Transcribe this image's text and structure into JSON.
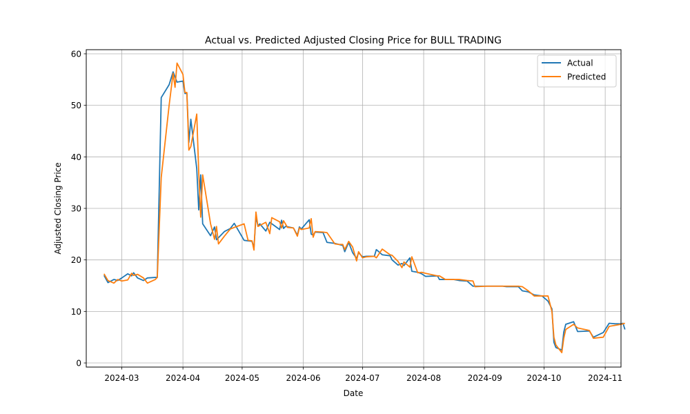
{
  "chart_data": {
    "type": "line",
    "title": "Actual vs. Predicted Adjusted Closing Price for BULL TRADING",
    "xlabel": "Date",
    "ylabel": "Adjusted Closing Price",
    "x_ticks": [
      "2024-03",
      "2024-04",
      "2024-05",
      "2024-06",
      "2024-07",
      "2024-08",
      "2024-09",
      "2024-10",
      "2024-11"
    ],
    "y_ticks": [
      "0",
      "10",
      "20",
      "30",
      "40",
      "50",
      "60"
    ],
    "xlim": [
      "2024-02-12",
      "2024-11-09"
    ],
    "ylim": [
      -0.8,
      60.8
    ],
    "grid": true,
    "legend": {
      "position": "top-right"
    },
    "series": [
      {
        "name": "Actual",
        "color": "#1f77b4",
        "points": [
          [
            "2024-02-21",
            17.0
          ],
          [
            "2024-02-23",
            15.6
          ],
          [
            "2024-02-26",
            16.2
          ],
          [
            "2024-02-28",
            16.0
          ],
          [
            "2024-03-01",
            16.5
          ],
          [
            "2024-03-04",
            17.3
          ],
          [
            "2024-03-06",
            16.9
          ],
          [
            "2024-03-07",
            17.5
          ],
          [
            "2024-03-09",
            16.5
          ],
          [
            "2024-03-12",
            16.0
          ],
          [
            "2024-03-14",
            16.5
          ],
          [
            "2024-03-18",
            16.6
          ],
          [
            "2024-03-19",
            16.6
          ],
          [
            "2024-03-21",
            51.5
          ],
          [
            "2024-03-25",
            54.0
          ],
          [
            "2024-03-27",
            56.5
          ],
          [
            "2024-03-29",
            54.5
          ],
          [
            "2024-04-01",
            54.7
          ],
          [
            "2024-04-02",
            52.3
          ],
          [
            "2024-04-03",
            52.3
          ],
          [
            "2024-04-04",
            42.8
          ],
          [
            "2024-04-05",
            47.3
          ],
          [
            "2024-04-08",
            37.7
          ],
          [
            "2024-04-09",
            29.7
          ],
          [
            "2024-04-10",
            36.5
          ],
          [
            "2024-04-11",
            27.0
          ],
          [
            "2024-04-15",
            24.7
          ],
          [
            "2024-04-17",
            26.4
          ],
          [
            "2024-04-18",
            23.9
          ],
          [
            "2024-04-22",
            25.5
          ],
          [
            "2024-04-25",
            26.1
          ],
          [
            "2024-04-27",
            27.1
          ],
          [
            "2024-05-02",
            23.8
          ],
          [
            "2024-05-06",
            23.6
          ],
          [
            "2024-05-07",
            22.4
          ],
          [
            "2024-05-08",
            28.4
          ],
          [
            "2024-05-09",
            26.6
          ],
          [
            "2024-05-10",
            27.0
          ],
          [
            "2024-05-13",
            25.6
          ],
          [
            "2024-05-15",
            27.3
          ],
          [
            "2024-05-20",
            25.9
          ],
          [
            "2024-05-21",
            27.7
          ],
          [
            "2024-05-22",
            26.1
          ],
          [
            "2024-05-23",
            26.5
          ],
          [
            "2024-05-27",
            26.2
          ],
          [
            "2024-05-29",
            24.8
          ],
          [
            "2024-05-30",
            26.4
          ],
          [
            "2024-05-31",
            26.0
          ],
          [
            "2024-06-04",
            27.8
          ],
          [
            "2024-06-05",
            25.0
          ],
          [
            "2024-06-06",
            24.8
          ],
          [
            "2024-06-07",
            25.4
          ],
          [
            "2024-06-11",
            25.3
          ],
          [
            "2024-06-13",
            23.4
          ],
          [
            "2024-06-17",
            23.2
          ],
          [
            "2024-06-19",
            23.0
          ],
          [
            "2024-06-21",
            22.8
          ],
          [
            "2024-06-22",
            21.6
          ],
          [
            "2024-06-24",
            23.4
          ],
          [
            "2024-06-26",
            21.4
          ],
          [
            "2024-06-28",
            20.3
          ],
          [
            "2024-06-29",
            21.4
          ],
          [
            "2024-07-01",
            20.6
          ],
          [
            "2024-07-03",
            20.7
          ],
          [
            "2024-07-07",
            20.7
          ],
          [
            "2024-07-08",
            22.0
          ],
          [
            "2024-07-11",
            21.0
          ],
          [
            "2024-07-15",
            20.8
          ],
          [
            "2024-07-16",
            20.0
          ],
          [
            "2024-07-19",
            19.0
          ],
          [
            "2024-07-21",
            19.3
          ],
          [
            "2024-07-22",
            18.9
          ],
          [
            "2024-07-25",
            20.4
          ],
          [
            "2024-07-26",
            17.8
          ],
          [
            "2024-07-29",
            17.6
          ],
          [
            "2024-07-31",
            17.3
          ],
          [
            "2024-08-02",
            16.8
          ],
          [
            "2024-08-08",
            16.9
          ],
          [
            "2024-08-09",
            16.2
          ],
          [
            "2024-08-12",
            16.2
          ],
          [
            "2024-08-16",
            16.2
          ],
          [
            "2024-08-19",
            16.0
          ],
          [
            "2024-08-23",
            15.9
          ],
          [
            "2024-08-26",
            14.9
          ],
          [
            "2024-09-02",
            14.9
          ],
          [
            "2024-09-10",
            14.9
          ],
          [
            "2024-09-12",
            14.8
          ],
          [
            "2024-09-18",
            14.8
          ],
          [
            "2024-09-20",
            14.0
          ],
          [
            "2024-09-23",
            13.8
          ],
          [
            "2024-09-26",
            13.2
          ],
          [
            "2024-09-30",
            13.0
          ],
          [
            "2024-10-03",
            12.0
          ],
          [
            "2024-10-05",
            10.5
          ],
          [
            "2024-10-06",
            4.0
          ],
          [
            "2024-10-07",
            3.0
          ],
          [
            "2024-10-10",
            2.5
          ],
          [
            "2024-10-11",
            6.0
          ],
          [
            "2024-10-12",
            7.5
          ],
          [
            "2024-10-16",
            8.0
          ],
          [
            "2024-10-18",
            6.1
          ],
          [
            "2024-10-24",
            6.2
          ],
          [
            "2024-10-26",
            5.0
          ],
          [
            "2024-10-31",
            5.9
          ],
          [
            "2024-11-03",
            7.7
          ],
          [
            "2024-11-06",
            7.6
          ],
          [
            "2024-11-09",
            7.6
          ],
          [
            "2024-11-10",
            7.7
          ],
          [
            "2024-11-11",
            6.5
          ]
        ]
      },
      {
        "name": "Predicted",
        "color": "#ff7f0e",
        "points": [
          [
            "2024-02-21",
            17.3
          ],
          [
            "2024-02-23",
            16.0
          ],
          [
            "2024-02-26",
            15.5
          ],
          [
            "2024-02-28",
            16.2
          ],
          [
            "2024-03-01",
            15.9
          ],
          [
            "2024-03-04",
            16.1
          ],
          [
            "2024-03-06",
            17.4
          ],
          [
            "2024-03-07",
            17.0
          ],
          [
            "2024-03-09",
            17.2
          ],
          [
            "2024-03-12",
            16.5
          ],
          [
            "2024-03-14",
            15.5
          ],
          [
            "2024-03-18",
            16.2
          ],
          [
            "2024-03-19",
            16.6
          ],
          [
            "2024-03-21",
            36.0
          ],
          [
            "2024-03-25",
            50.0
          ],
          [
            "2024-03-27",
            56.2
          ],
          [
            "2024-03-28",
            53.5
          ],
          [
            "2024-03-29",
            58.2
          ],
          [
            "2024-04-01",
            56.0
          ],
          [
            "2024-04-02",
            52.5
          ],
          [
            "2024-04-03",
            52.5
          ],
          [
            "2024-04-04",
            41.3
          ],
          [
            "2024-04-05",
            42.0
          ],
          [
            "2024-04-08",
            48.3
          ],
          [
            "2024-04-09",
            37.0
          ],
          [
            "2024-04-10",
            28.3
          ],
          [
            "2024-04-11",
            36.5
          ],
          [
            "2024-04-15",
            27.0
          ],
          [
            "2024-04-17",
            24.0
          ],
          [
            "2024-04-18",
            26.5
          ],
          [
            "2024-04-19",
            23.1
          ],
          [
            "2024-04-22",
            24.6
          ],
          [
            "2024-04-25",
            26.0
          ],
          [
            "2024-04-27",
            26.3
          ],
          [
            "2024-05-02",
            27.0
          ],
          [
            "2024-05-04",
            23.8
          ],
          [
            "2024-05-06",
            23.7
          ],
          [
            "2024-05-07",
            21.9
          ],
          [
            "2024-05-08",
            29.3
          ],
          [
            "2024-05-09",
            26.5
          ],
          [
            "2024-05-13",
            27.3
          ],
          [
            "2024-05-15",
            25.1
          ],
          [
            "2024-05-16",
            28.2
          ],
          [
            "2024-05-20",
            27.4
          ],
          [
            "2024-05-21",
            26.2
          ],
          [
            "2024-05-22",
            27.6
          ],
          [
            "2024-05-24",
            26.3
          ],
          [
            "2024-05-27",
            26.2
          ],
          [
            "2024-05-29",
            24.6
          ],
          [
            "2024-05-30",
            26.2
          ],
          [
            "2024-05-31",
            25.9
          ],
          [
            "2024-06-04",
            26.2
          ],
          [
            "2024-06-05",
            28.0
          ],
          [
            "2024-06-06",
            24.4
          ],
          [
            "2024-06-07",
            25.5
          ],
          [
            "2024-06-11",
            25.4
          ],
          [
            "2024-06-13",
            25.3
          ],
          [
            "2024-06-17",
            23.1
          ],
          [
            "2024-06-19",
            23.0
          ],
          [
            "2024-06-21",
            23.0
          ],
          [
            "2024-06-22",
            22.0
          ],
          [
            "2024-06-24",
            23.6
          ],
          [
            "2024-06-26",
            22.5
          ],
          [
            "2024-06-28",
            19.8
          ],
          [
            "2024-06-29",
            21.6
          ],
          [
            "2024-07-01",
            20.4
          ],
          [
            "2024-07-03",
            20.6
          ],
          [
            "2024-07-07",
            20.7
          ],
          [
            "2024-07-08",
            20.4
          ],
          [
            "2024-07-11",
            22.1
          ],
          [
            "2024-07-15",
            21.0
          ],
          [
            "2024-07-16",
            20.9
          ],
          [
            "2024-07-19",
            19.7
          ],
          [
            "2024-07-21",
            18.5
          ],
          [
            "2024-07-22",
            19.6
          ],
          [
            "2024-07-25",
            18.6
          ],
          [
            "2024-07-26",
            20.6
          ],
          [
            "2024-07-29",
            17.5
          ],
          [
            "2024-07-31",
            17.6
          ],
          [
            "2024-08-02",
            17.4
          ],
          [
            "2024-08-08",
            16.9
          ],
          [
            "2024-08-09",
            16.9
          ],
          [
            "2024-08-12",
            16.2
          ],
          [
            "2024-08-16",
            16.2
          ],
          [
            "2024-08-19",
            16.2
          ],
          [
            "2024-08-23",
            16.0
          ],
          [
            "2024-08-26",
            15.9
          ],
          [
            "2024-08-27",
            14.8
          ],
          [
            "2024-09-02",
            14.9
          ],
          [
            "2024-09-10",
            14.9
          ],
          [
            "2024-09-12",
            14.9
          ],
          [
            "2024-09-18",
            14.9
          ],
          [
            "2024-09-20",
            14.8
          ],
          [
            "2024-09-23",
            14.0
          ],
          [
            "2024-09-26",
            13.0
          ],
          [
            "2024-09-30",
            13.0
          ],
          [
            "2024-10-03",
            13.0
          ],
          [
            "2024-10-05",
            10.0
          ],
          [
            "2024-10-06",
            5.0
          ],
          [
            "2024-10-07",
            3.5
          ],
          [
            "2024-10-10",
            2.0
          ],
          [
            "2024-10-11",
            4.8
          ],
          [
            "2024-10-12",
            6.5
          ],
          [
            "2024-10-16",
            7.5
          ],
          [
            "2024-10-18",
            6.8
          ],
          [
            "2024-10-24",
            6.3
          ],
          [
            "2024-10-26",
            4.8
          ],
          [
            "2024-10-31",
            5.0
          ],
          [
            "2024-11-03",
            7.1
          ],
          [
            "2024-11-06",
            7.3
          ],
          [
            "2024-11-09",
            7.5
          ],
          [
            "2024-11-11",
            7.7
          ]
        ]
      }
    ]
  }
}
